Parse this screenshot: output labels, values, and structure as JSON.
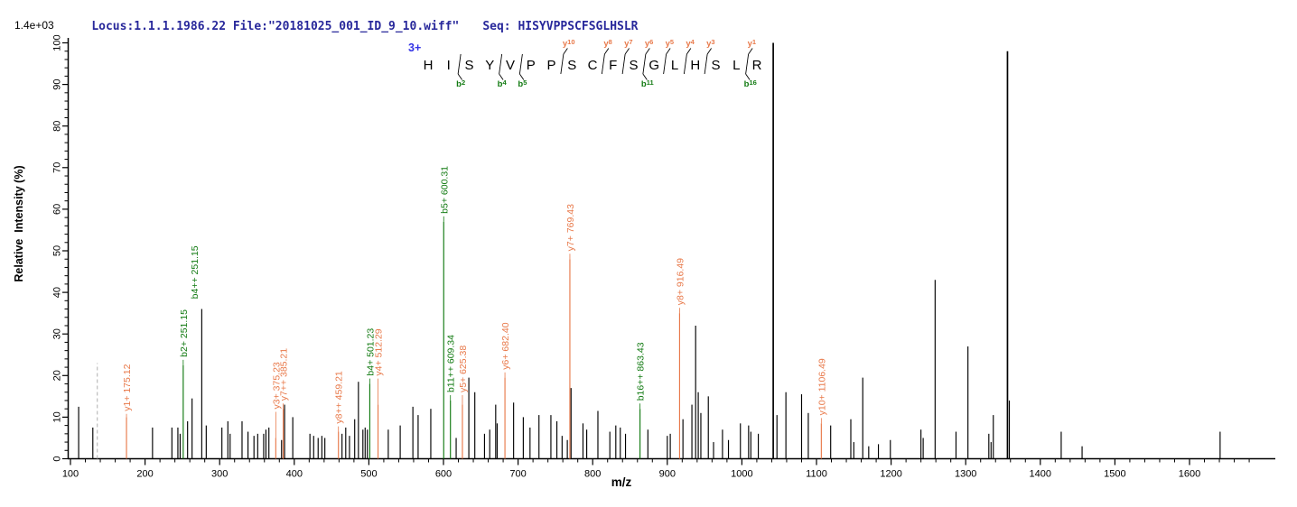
{
  "header": {
    "locus_file": "Locus:1.1.1.1986.22 File:\"20181025_001_ID_9_10.wiff\"",
    "seq_label": "Seq: HISYVPPSCFSGLHSLR",
    "scale_label": "1.4e+03"
  },
  "sequence_panel": {
    "charge_label": "3+",
    "residues": [
      "H",
      "I",
      "S",
      "Y",
      "V",
      "P",
      "P",
      "S",
      "C",
      "F",
      "S",
      "G",
      "L",
      "H",
      "S",
      "L",
      "R"
    ],
    "y_ions": [
      {
        "label": "y10",
        "gap": 7
      },
      {
        "label": "y8",
        "gap": 9
      },
      {
        "label": "y7",
        "gap": 10
      },
      {
        "label": "y6",
        "gap": 11
      },
      {
        "label": "y5",
        "gap": 12
      },
      {
        "label": "y4",
        "gap": 13
      },
      {
        "label": "y3",
        "gap": 14
      },
      {
        "label": "y1",
        "gap": 16
      }
    ],
    "b_ions": [
      {
        "label": "b2",
        "gap": 2
      },
      {
        "label": "b4",
        "gap": 4
      },
      {
        "label": "b5",
        "gap": 5
      },
      {
        "label": "b11",
        "gap": 11
      },
      {
        "label": "b16",
        "gap": 16
      }
    ]
  },
  "chart_data": {
    "type": "bar",
    "variant": "centroid MS/MS mass spectrum",
    "title": "",
    "xlabel": "m/z",
    "ylabel": "Relative  Intensity (%)",
    "x_ticks": [
      100,
      200,
      300,
      400,
      500,
      600,
      700,
      800,
      900,
      1000,
      1100,
      1200,
      1300,
      1400,
      1500,
      1600
    ],
    "y_ticks": [
      0,
      10,
      20,
      30,
      40,
      50,
      60,
      70,
      80,
      90,
      100
    ],
    "x_minor_step": 20,
    "y_minor_step": 2,
    "x_range": [
      96,
      1690
    ],
    "ylim": [
      0,
      100
    ],
    "grid": false,
    "precursor_marker": {
      "mz": 136,
      "intensity": 23,
      "style": "dashed"
    },
    "annotated_peaks": [
      {
        "ion": "y1+",
        "mz": 175.12,
        "text": "y1+ 175.12",
        "intensity": 10,
        "series": "y",
        "label_y": 11
      },
      {
        "ion": "b2+",
        "mz": 251.15,
        "text": "b2+ 251.15",
        "intensity": 22.5,
        "series": "b",
        "label_y": 24
      },
      {
        "ion": "b4++",
        "mz": 251.15,
        "text": "b4++ 251.15",
        "intensity": 22.5,
        "series": "b",
        "label_y": 38,
        "dx": 12,
        "no_line": true
      },
      {
        "ion": "y3+",
        "mz": 375.23,
        "text": "y3+ 375.23",
        "intensity": 5,
        "series": "y",
        "label_y": 11.5
      },
      {
        "ion": "y7++",
        "mz": 385.21,
        "text": "y7++ 385.21",
        "intensity": 12,
        "series": "y",
        "label_y": 13.5
      },
      {
        "ion": "y8++",
        "mz": 459.21,
        "text": "y8++ 459.21",
        "intensity": 6.5,
        "series": "y",
        "label_y": 8
      },
      {
        "ion": "b4+",
        "mz": 501.23,
        "text": "b4+ 501.23",
        "intensity": 18,
        "series": "b",
        "label_y": 19.5
      },
      {
        "ion": "y4+",
        "mz": 512.29,
        "text": "y4+ 512.29",
        "intensity": 13,
        "series": "y",
        "label_y": 19.5
      },
      {
        "ion": "b5+",
        "mz": 600.31,
        "text": "b5+ 600.31",
        "intensity": 57,
        "series": "b",
        "label_y": 58.5
      },
      {
        "ion": "b11++",
        "mz": 609.34,
        "text": "b11++ 609.34",
        "intensity": 14,
        "series": "b",
        "label_y": 15.5
      },
      {
        "ion": "y5+",
        "mz": 625.38,
        "text": "y5+ 625.38",
        "intensity": 13,
        "series": "y",
        "label_y": 15.5
      },
      {
        "ion": "y6+",
        "mz": 682.4,
        "text": "y6+ 682.40",
        "intensity": 19.5,
        "series": "y",
        "label_y": 21
      },
      {
        "ion": "y7+",
        "mz": 769.43,
        "text": "y7+ 769.43",
        "intensity": 48,
        "series": "y",
        "label_y": 49.5
      },
      {
        "ion": "b16++",
        "mz": 863.43,
        "text": "b16++ 863.43",
        "intensity": 12,
        "series": "b",
        "label_y": 13.5
      },
      {
        "ion": "y8+",
        "mz": 916.49,
        "text": "y8+ 916.49",
        "intensity": 35,
        "series": "y",
        "label_y": 36.5
      },
      {
        "ion": "y10+",
        "mz": 1106.49,
        "text": "y10+ 1106.49",
        "intensity": 8.5,
        "series": "y",
        "label_y": 10
      }
    ],
    "unlabeled_peaks": [
      [
        111,
        12.5
      ],
      [
        130,
        7.5
      ],
      [
        210,
        7.5
      ],
      [
        236,
        7.5
      ],
      [
        244,
        7.5
      ],
      [
        247,
        6
      ],
      [
        257,
        9
      ],
      [
        263,
        14.5
      ],
      [
        276,
        36
      ],
      [
        282,
        8
      ],
      [
        303,
        7.5
      ],
      [
        311,
        9
      ],
      [
        314,
        6
      ],
      [
        330,
        9
      ],
      [
        338,
        6.5
      ],
      [
        346,
        5.5
      ],
      [
        351,
        6
      ],
      [
        359,
        6
      ],
      [
        362,
        7
      ],
      [
        366,
        7.5
      ],
      [
        383,
        4.5
      ],
      [
        387,
        13
      ],
      [
        398,
        10
      ],
      [
        421,
        6
      ],
      [
        426,
        5.5
      ],
      [
        432,
        5
      ],
      [
        437,
        5.5
      ],
      [
        441,
        5
      ],
      [
        464,
        6
      ],
      [
        469,
        7.5
      ],
      [
        474,
        5.5
      ],
      [
        481,
        9.5
      ],
      [
        486,
        18.5
      ],
      [
        492,
        7
      ],
      [
        495,
        7.5
      ],
      [
        498,
        7
      ],
      [
        526,
        7
      ],
      [
        542,
        8
      ],
      [
        559,
        12.5
      ],
      [
        566,
        10.5
      ],
      [
        583,
        12
      ],
      [
        617,
        5
      ],
      [
        634,
        19.5
      ],
      [
        642,
        16
      ],
      [
        655,
        6
      ],
      [
        662,
        7
      ],
      [
        670,
        13
      ],
      [
        672,
        8.5
      ],
      [
        694,
        13.5
      ],
      [
        707,
        10
      ],
      [
        716,
        7.5
      ],
      [
        728,
        10.5
      ],
      [
        744,
        10.5
      ],
      [
        752,
        9
      ],
      [
        759,
        5.5
      ],
      [
        766,
        4.5
      ],
      [
        771,
        17
      ],
      [
        787,
        8.5
      ],
      [
        792,
        7
      ],
      [
        807,
        11.5
      ],
      [
        823,
        6.5
      ],
      [
        831,
        8
      ],
      [
        837,
        7.5
      ],
      [
        844,
        6
      ],
      [
        874,
        7
      ],
      [
        900,
        5.5
      ],
      [
        904,
        6
      ],
      [
        921,
        9.5
      ],
      [
        933,
        13
      ],
      [
        938,
        32
      ],
      [
        941.5,
        16
      ],
      [
        945,
        11
      ],
      [
        955,
        15
      ],
      [
        962,
        4
      ],
      [
        974,
        7
      ],
      [
        982,
        4.5
      ],
      [
        998,
        8.5
      ],
      [
        1009,
        8
      ],
      [
        1012,
        6.5
      ],
      [
        1022,
        6
      ],
      [
        1042,
        100
      ],
      [
        1047,
        10.5
      ],
      [
        1059,
        16
      ],
      [
        1080,
        15.5
      ],
      [
        1089,
        11
      ],
      [
        1119,
        8
      ],
      [
        1146,
        9.5
      ],
      [
        1150,
        4
      ],
      [
        1162,
        19.5
      ],
      [
        1170,
        3
      ],
      [
        1183,
        3.5
      ],
      [
        1199,
        4.5
      ],
      [
        1240,
        7
      ],
      [
        1243,
        5
      ],
      [
        1259,
        43
      ],
      [
        1287,
        6.5
      ],
      [
        1303,
        27
      ],
      [
        1331,
        6
      ],
      [
        1334,
        4
      ],
      [
        1337,
        10.5
      ],
      [
        1356,
        98
      ],
      [
        1358.5,
        14
      ],
      [
        1428,
        6.5
      ],
      [
        1456,
        3
      ],
      [
        1641,
        6.5
      ]
    ]
  },
  "colors": {
    "y_ion": "#E8794A",
    "b_ion": "#117A11",
    "peak": "#000000",
    "header_text": "#28289B",
    "charge": "#3333E6",
    "precursor_marker": "#B0B0B0"
  }
}
